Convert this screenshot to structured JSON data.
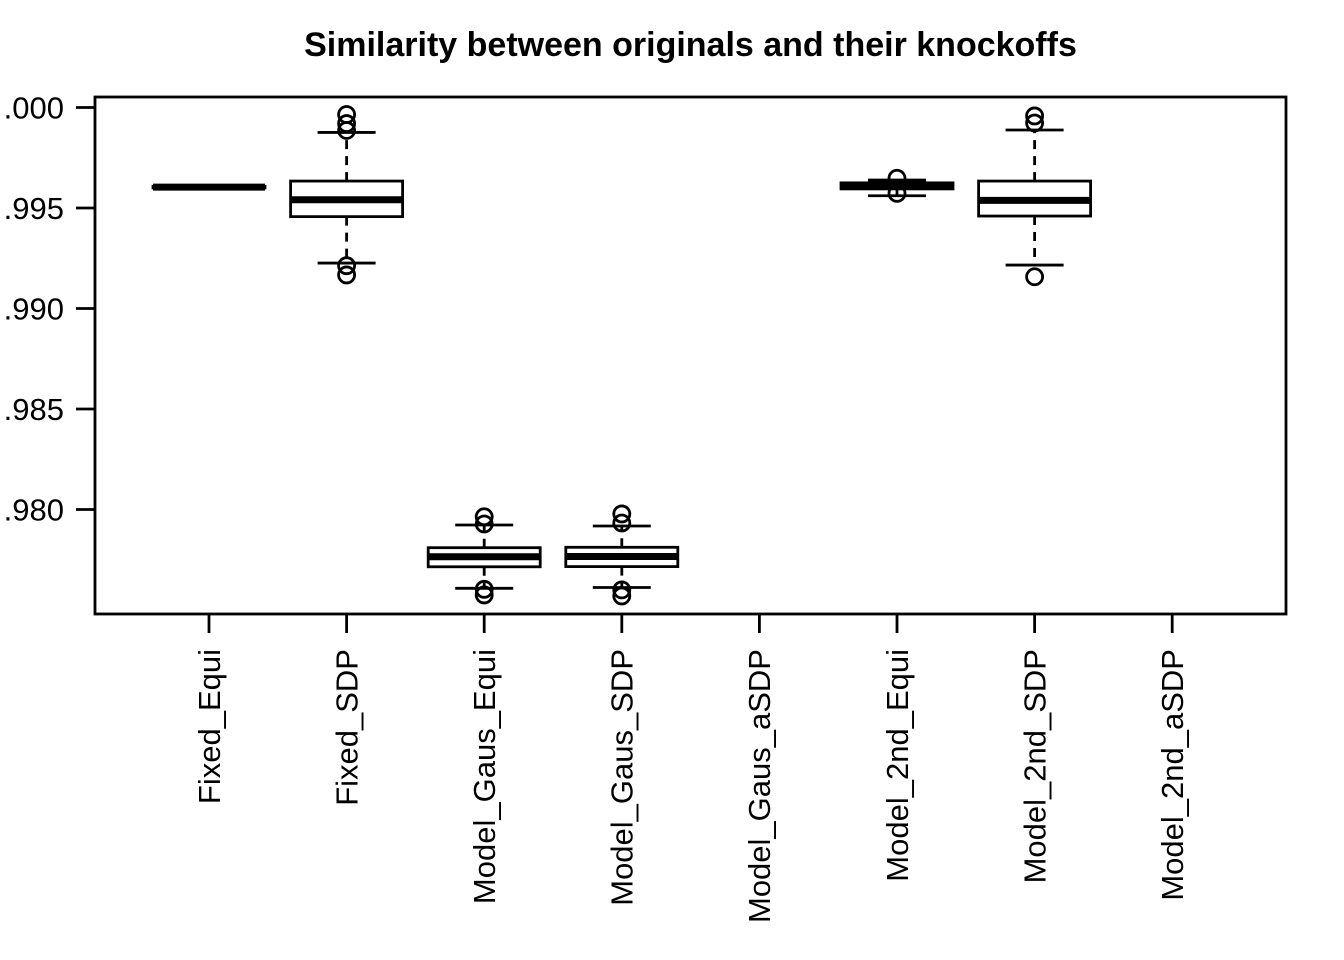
{
  "title": "Similarity between originals and their knockoffs",
  "chart_data": {
    "type": "boxplot",
    "title": "Similarity between originals and their knockoffs",
    "xlabel": "",
    "ylabel": "",
    "grid": false,
    "legend": "none",
    "categories": [
      "Fixed_Equi",
      "Fixed_SDP",
      "Model_Gaus_Equi",
      "Model_Gaus_SDP",
      "Model_Gaus_aSDP",
      "Model_2nd_Equi",
      "Model_2nd_SDP",
      "Model_2nd_aSDP"
    ],
    "y_axis": {
      "tick_values": [
        1.0,
        0.995,
        0.99,
        0.985,
        0.98
      ],
      "tick_labels_visible": [
        ".000",
        ".995",
        ".990",
        ".985",
        ".980"
      ],
      "ylim": [
        0.9748,
        1.0005
      ]
    },
    "boxes": [
      {
        "category": "Fixed_Equi",
        "q1": 0.996,
        "median": 0.99604,
        "q3": 0.99608,
        "whisker_low": null,
        "whisker_high": null,
        "outliers_high": [],
        "outliers_low": []
      },
      {
        "category": "Fixed_SDP",
        "q1": 0.99457,
        "median": 0.99541,
        "q3": 0.99634,
        "whisker_low": 0.99226,
        "whisker_high": 0.99876,
        "outliers_high": [
          0.99965,
          0.9992,
          0.99886
        ],
        "outliers_low": [
          0.99213,
          0.99167
        ]
      },
      {
        "category": "Model_Gaus_Equi",
        "q1": 0.97715,
        "median": 0.97765,
        "q3": 0.9781,
        "whisker_low": 0.97608,
        "whisker_high": 0.97923,
        "outliers_high": [
          0.97964,
          0.97928
        ],
        "outliers_low": [
          0.97603,
          0.97575
        ]
      },
      {
        "category": "Model_Gaus_SDP",
        "q1": 0.97716,
        "median": 0.97766,
        "q3": 0.97812,
        "whisker_low": 0.97612,
        "whisker_high": 0.97918,
        "outliers_high": [
          0.97978,
          0.97933
        ],
        "outliers_low": [
          0.976,
          0.9757
        ]
      },
      null,
      {
        "category": "Model_2nd_Equi",
        "q1": 0.99595,
        "median": 0.9961,
        "q3": 0.99625,
        "whisker_low": 0.99561,
        "whisker_high": 0.99639,
        "outliers_high": [
          0.99648
        ],
        "outliers_low": [
          0.99573
        ]
      },
      {
        "category": "Model_2nd_SDP",
        "q1": 0.9946,
        "median": 0.99538,
        "q3": 0.99634,
        "whisker_low": 0.99216,
        "whisker_high": 0.99888,
        "outliers_high": [
          0.99958,
          0.99923
        ],
        "outliers_low": [
          0.99158
        ]
      },
      null
    ],
    "style": {
      "stroke": "#000000",
      "background": "#ffffff"
    }
  }
}
